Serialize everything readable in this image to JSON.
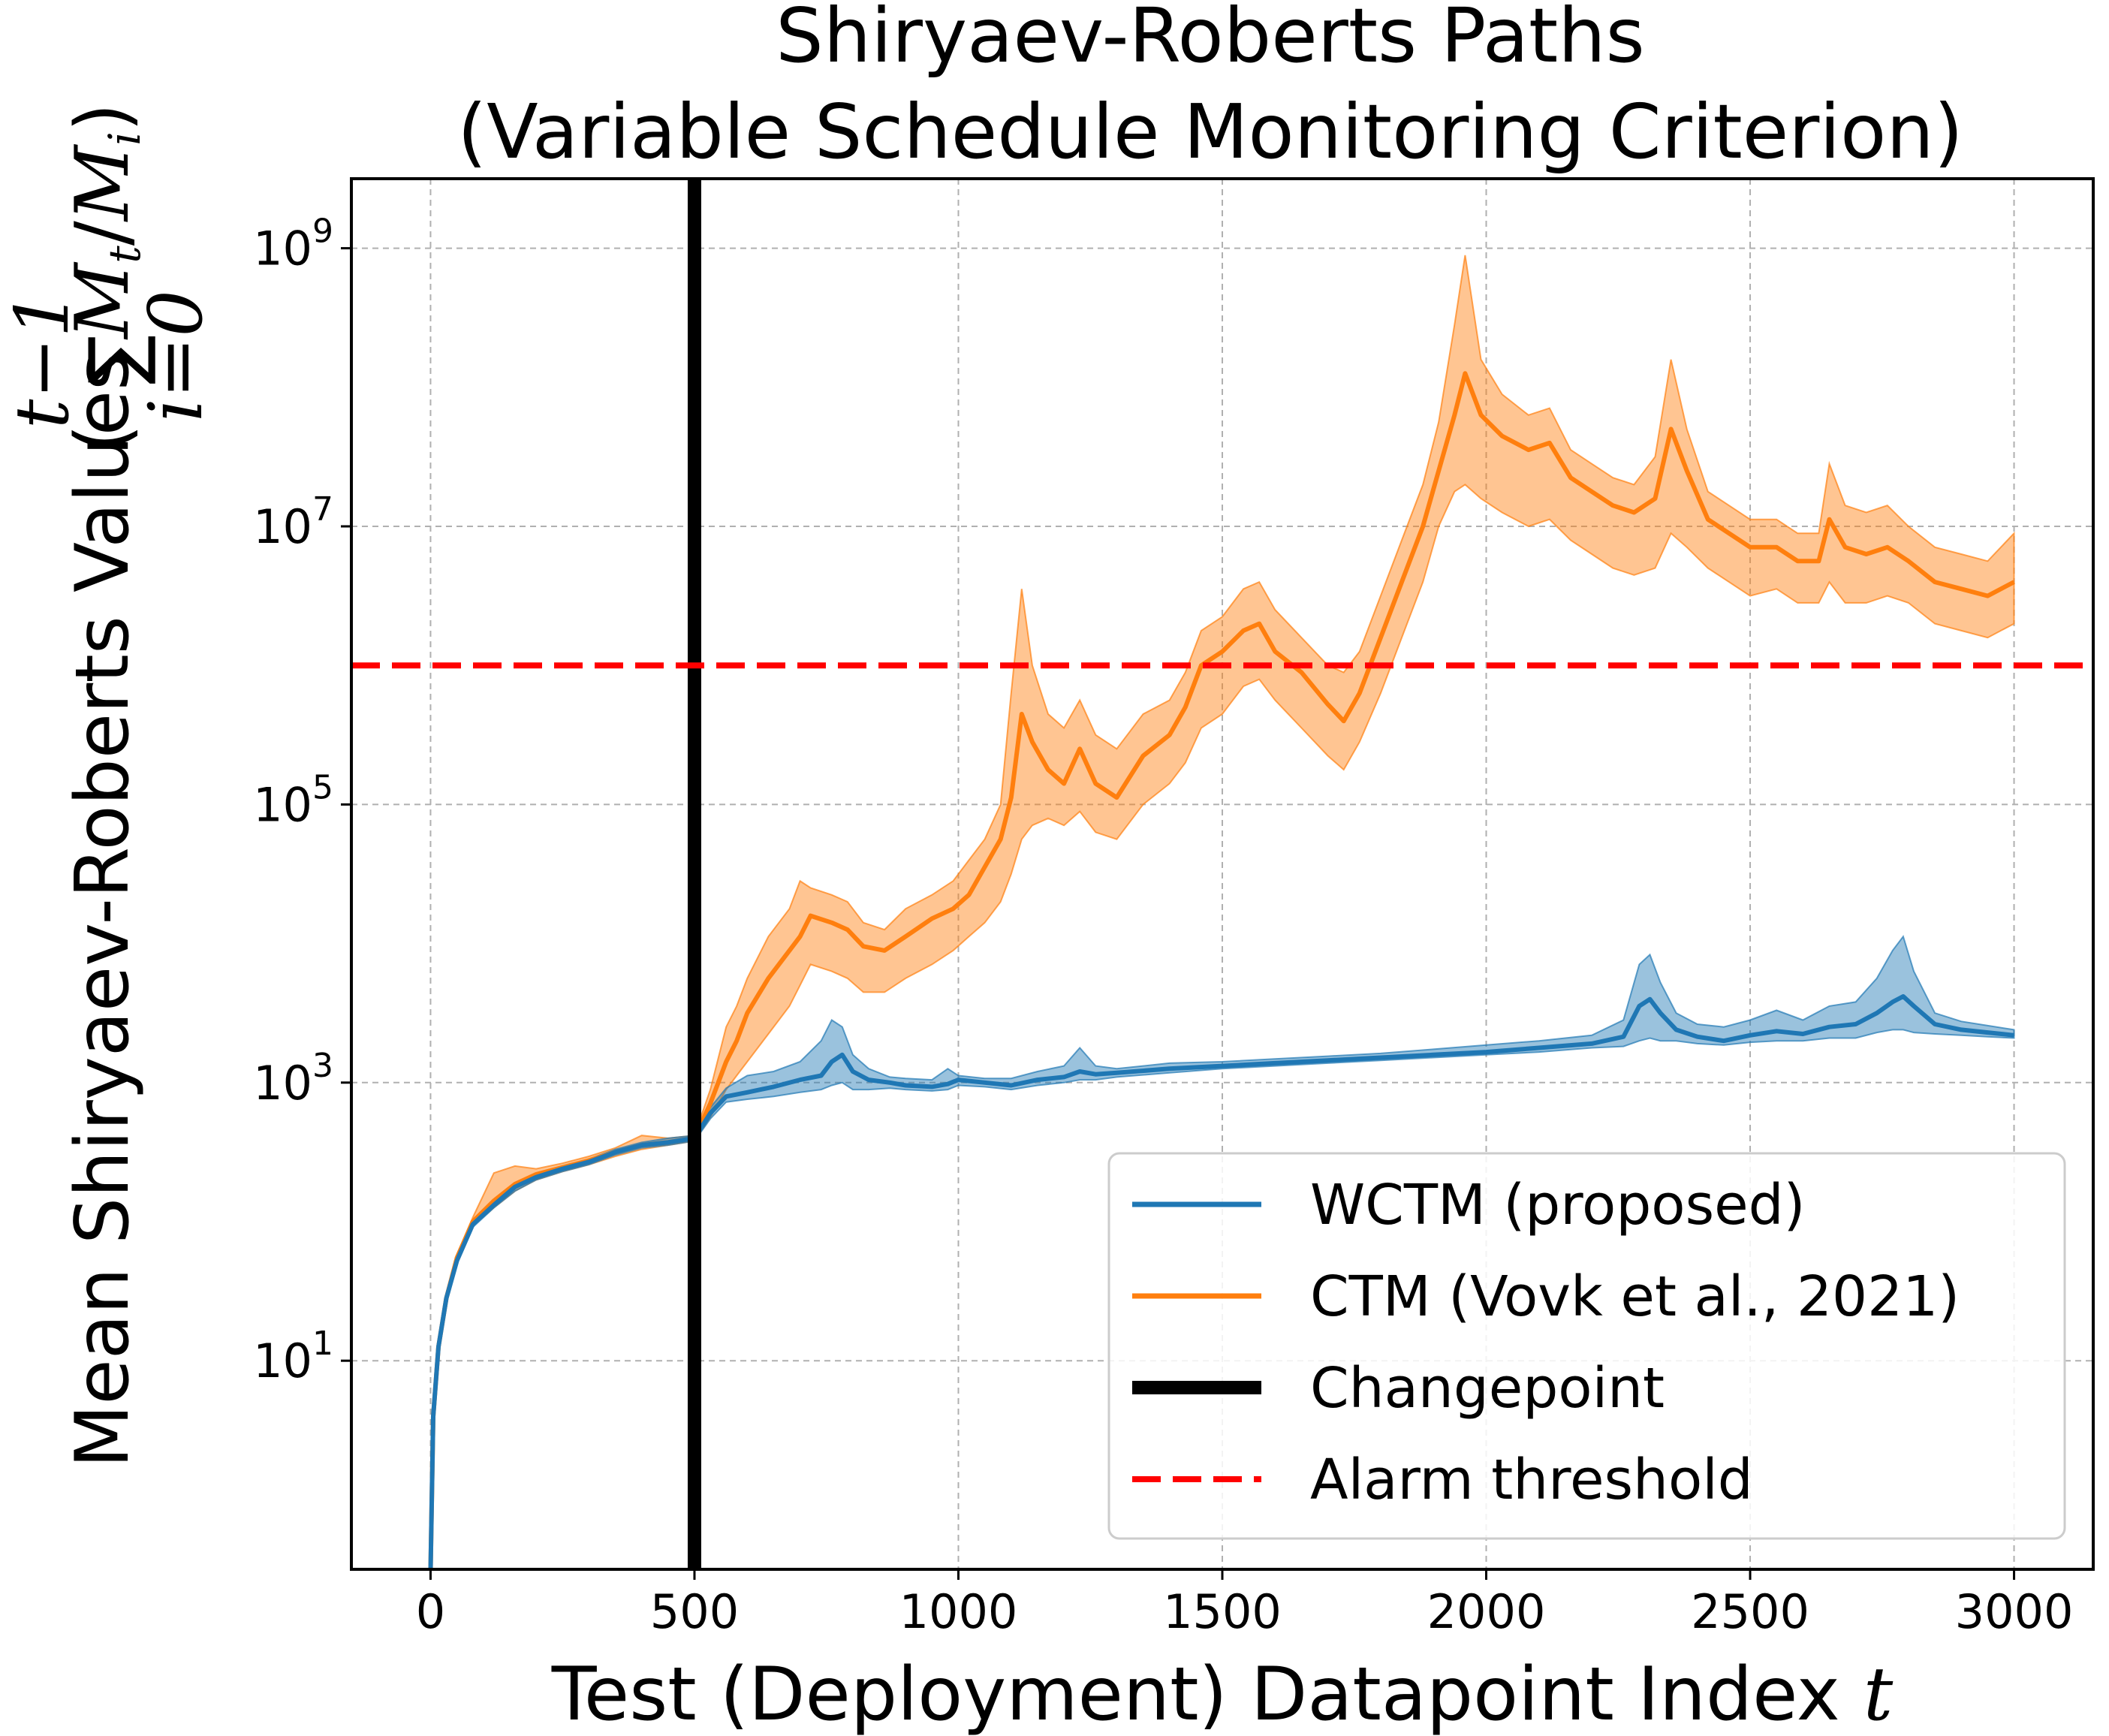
{
  "chart_data": {
    "type": "line",
    "title_lines": [
      "Shiryaev-Roberts Paths",
      "(Variable Schedule Monitoring Criterion)"
    ],
    "xlabel": "Test (Deployment) Datapoint Index",
    "xlabel_var": "t",
    "ylabel": "Mean Shiryaev-Roberts Values",
    "ylabel_formula": {
      "sum_upper": "t−1",
      "sum_lower": "i=0",
      "sum_symbol": "∑",
      "term": "M_t/M_i"
    },
    "y_scale": "log",
    "xlim": [
      -150,
      3150
    ],
    "ylim_log10": [
      -0.5,
      9.5
    ],
    "x_ticks": [
      0,
      500,
      1000,
      1500,
      2000,
      2500,
      3000
    ],
    "x_tick_labels": [
      "0",
      "500",
      "1000",
      "1500",
      "2000",
      "2500",
      "3000"
    ],
    "y_tick_exponents": [
      1,
      3,
      5,
      7,
      9
    ],
    "y_tick_base": "10",
    "grid": true,
    "legend_position": "lower-right",
    "colors": {
      "wctm": "#1f77b4",
      "ctm": "#ff7f0e",
      "changepoint": "#000000",
      "threshold": "#ff0000",
      "grid": "#b0b0b0"
    },
    "series": [
      {
        "name": "WCTM (proposed)",
        "x": [
          0,
          5,
          15,
          30,
          50,
          80,
          120,
          160,
          200,
          250,
          300,
          350,
          400,
          450,
          500,
          530,
          560,
          600,
          650,
          700,
          740,
          760,
          780,
          800,
          830,
          870,
          900,
          950,
          980,
          1000,
          1050,
          1100,
          1150,
          1200,
          1230,
          1260,
          1300,
          1400,
          1500,
          1600,
          1700,
          1800,
          1900,
          2000,
          2100,
          2200,
          2260,
          2290,
          2310,
          2330,
          2360,
          2400,
          2450,
          2500,
          2550,
          2600,
          2650,
          2700,
          2740,
          2770,
          2790,
          2810,
          2850,
          2900,
          2950,
          3000
        ],
        "mean_log10": [
          -0.5,
          0.6,
          1.1,
          1.45,
          1.72,
          1.98,
          2.12,
          2.25,
          2.32,
          2.38,
          2.43,
          2.5,
          2.55,
          2.57,
          2.6,
          2.78,
          2.9,
          2.93,
          2.97,
          3.02,
          3.05,
          3.15,
          3.2,
          3.08,
          3.02,
          3.0,
          2.98,
          2.97,
          2.99,
          3.02,
          3.0,
          2.98,
          3.02,
          3.04,
          3.08,
          3.06,
          3.07,
          3.1,
          3.12,
          3.14,
          3.16,
          3.18,
          3.2,
          3.22,
          3.25,
          3.28,
          3.33,
          3.55,
          3.6,
          3.5,
          3.38,
          3.33,
          3.3,
          3.34,
          3.37,
          3.35,
          3.4,
          3.42,
          3.5,
          3.58,
          3.62,
          3.55,
          3.42,
          3.38,
          3.36,
          3.34
        ],
        "band_upper_log10": [
          -0.5,
          0.6,
          1.1,
          1.45,
          1.73,
          2.0,
          2.15,
          2.28,
          2.35,
          2.4,
          2.45,
          2.52,
          2.57,
          2.6,
          2.62,
          2.82,
          2.96,
          3.05,
          3.08,
          3.15,
          3.3,
          3.45,
          3.4,
          3.2,
          3.1,
          3.04,
          3.03,
          3.02,
          3.1,
          3.05,
          3.03,
          3.03,
          3.08,
          3.12,
          3.25,
          3.12,
          3.1,
          3.14,
          3.15,
          3.17,
          3.19,
          3.21,
          3.24,
          3.27,
          3.3,
          3.34,
          3.45,
          3.85,
          3.92,
          3.72,
          3.5,
          3.42,
          3.4,
          3.45,
          3.52,
          3.45,
          3.55,
          3.58,
          3.75,
          3.95,
          4.05,
          3.8,
          3.5,
          3.44,
          3.41,
          3.38
        ],
        "band_lower_log10": [
          -0.5,
          0.6,
          1.1,
          1.44,
          1.7,
          1.96,
          2.1,
          2.22,
          2.3,
          2.36,
          2.41,
          2.48,
          2.53,
          2.55,
          2.58,
          2.74,
          2.86,
          2.88,
          2.9,
          2.93,
          2.95,
          2.98,
          3.0,
          2.95,
          2.95,
          2.96,
          2.95,
          2.94,
          2.95,
          2.98,
          2.97,
          2.95,
          2.98,
          3.0,
          3.02,
          3.02,
          3.04,
          3.07,
          3.1,
          3.12,
          3.14,
          3.16,
          3.18,
          3.2,
          3.22,
          3.25,
          3.26,
          3.3,
          3.32,
          3.3,
          3.3,
          3.28,
          3.27,
          3.29,
          3.3,
          3.3,
          3.32,
          3.32,
          3.36,
          3.38,
          3.38,
          3.36,
          3.35,
          3.34,
          3.33,
          3.32
        ]
      },
      {
        "name": "CTM (Vovk et al., 2021)",
        "x": [
          0,
          5,
          15,
          30,
          50,
          80,
          120,
          160,
          200,
          250,
          300,
          350,
          400,
          450,
          500,
          530,
          560,
          580,
          600,
          640,
          680,
          700,
          720,
          760,
          790,
          820,
          860,
          900,
          950,
          990,
          1020,
          1050,
          1080,
          1100,
          1120,
          1140,
          1170,
          1200,
          1230,
          1260,
          1300,
          1350,
          1400,
          1430,
          1460,
          1500,
          1540,
          1570,
          1600,
          1650,
          1700,
          1730,
          1760,
          1800,
          1840,
          1880,
          1910,
          1940,
          1960,
          1990,
          2030,
          2080,
          2120,
          2160,
          2200,
          2240,
          2280,
          2320,
          2350,
          2380,
          2420,
          2460,
          2500,
          2550,
          2590,
          2630,
          2650,
          2680,
          2720,
          2760,
          2800,
          2850,
          2900,
          2950,
          3000
        ],
        "mean_log10": [
          -0.5,
          0.6,
          1.1,
          1.45,
          1.74,
          2.0,
          2.15,
          2.27,
          2.34,
          2.39,
          2.44,
          2.5,
          2.55,
          2.57,
          2.6,
          2.85,
          3.15,
          3.3,
          3.5,
          3.75,
          3.95,
          4.05,
          4.2,
          4.15,
          4.1,
          3.98,
          3.95,
          4.05,
          4.18,
          4.25,
          4.35,
          4.55,
          4.75,
          5.05,
          5.65,
          5.45,
          5.25,
          5.15,
          5.4,
          5.15,
          5.05,
          5.35,
          5.5,
          5.7,
          6.0,
          6.1,
          6.25,
          6.3,
          6.1,
          5.95,
          5.72,
          5.6,
          5.8,
          6.2,
          6.6,
          7.0,
          7.4,
          7.8,
          8.1,
          7.8,
          7.65,
          7.55,
          7.6,
          7.35,
          7.25,
          7.15,
          7.1,
          7.2,
          7.7,
          7.4,
          7.05,
          6.95,
          6.85,
          6.85,
          6.75,
          6.75,
          7.05,
          6.85,
          6.8,
          6.85,
          6.75,
          6.6,
          6.55,
          6.5,
          6.6
        ],
        "band_upper_log10": [
          -0.5,
          0.6,
          1.1,
          1.46,
          1.76,
          2.03,
          2.35,
          2.4,
          2.38,
          2.42,
          2.47,
          2.53,
          2.62,
          2.6,
          2.62,
          2.95,
          3.4,
          3.55,
          3.75,
          4.05,
          4.25,
          4.45,
          4.4,
          4.35,
          4.3,
          4.15,
          4.1,
          4.25,
          4.35,
          4.45,
          4.6,
          4.75,
          5.0,
          5.8,
          6.55,
          6.0,
          5.65,
          5.55,
          5.75,
          5.5,
          5.4,
          5.65,
          5.75,
          5.95,
          6.25,
          6.35,
          6.55,
          6.6,
          6.4,
          6.2,
          6.0,
          5.95,
          6.1,
          6.5,
          6.9,
          7.3,
          7.75,
          8.45,
          8.95,
          8.2,
          7.95,
          7.8,
          7.85,
          7.55,
          7.45,
          7.35,
          7.3,
          7.5,
          8.2,
          7.7,
          7.25,
          7.15,
          7.05,
          7.05,
          6.95,
          6.95,
          7.45,
          7.15,
          7.1,
          7.15,
          7.0,
          6.85,
          6.8,
          6.75,
          6.95
        ],
        "band_lower_log10": [
          -0.5,
          0.6,
          1.1,
          1.44,
          1.72,
          1.97,
          2.1,
          2.22,
          2.3,
          2.36,
          2.41,
          2.47,
          2.52,
          2.55,
          2.58,
          2.75,
          2.95,
          3.05,
          3.15,
          3.35,
          3.55,
          3.7,
          3.85,
          3.8,
          3.75,
          3.65,
          3.65,
          3.75,
          3.85,
          3.95,
          4.05,
          4.15,
          4.3,
          4.5,
          4.75,
          4.85,
          4.9,
          4.85,
          4.95,
          4.8,
          4.75,
          5.0,
          5.15,
          5.3,
          5.55,
          5.65,
          5.85,
          5.9,
          5.75,
          5.55,
          5.35,
          5.25,
          5.45,
          5.8,
          6.2,
          6.6,
          7.0,
          7.25,
          7.3,
          7.2,
          7.1,
          7.0,
          7.05,
          6.9,
          6.8,
          6.7,
          6.65,
          6.7,
          6.95,
          6.85,
          6.7,
          6.6,
          6.5,
          6.55,
          6.45,
          6.45,
          6.6,
          6.45,
          6.45,
          6.5,
          6.45,
          6.3,
          6.25,
          6.2,
          6.3
        ]
      }
    ],
    "changepoint": {
      "name": "Changepoint",
      "x": 500
    },
    "threshold": {
      "name": "Alarm threshold",
      "y_log10": 6
    }
  }
}
